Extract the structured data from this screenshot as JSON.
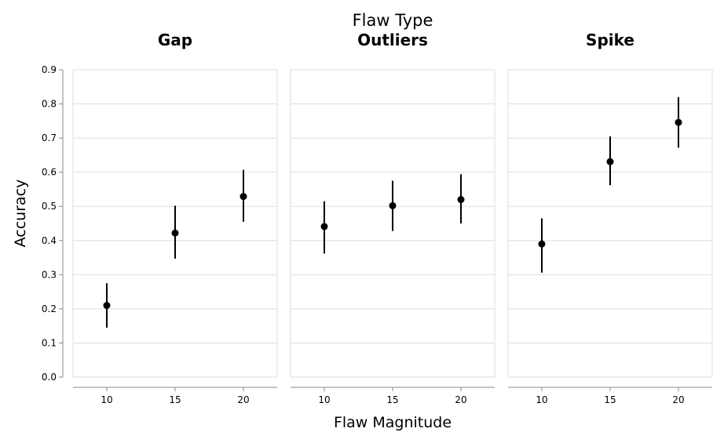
{
  "chart_data": {
    "type": "scatter",
    "super_title": "Flaw Type",
    "xlabel": "Flaw Magnitude",
    "ylabel": "Accuracy",
    "ylim": [
      0,
      0.9
    ],
    "yticks": [
      "0.0",
      "0.1",
      "0.2",
      "0.3",
      "0.4",
      "0.5",
      "0.6",
      "0.7",
      "0.8",
      "0.9"
    ],
    "categories": [
      "10",
      "15",
      "20"
    ],
    "grid": true,
    "error_bars": true,
    "facets": [
      {
        "title": "Gap",
        "points": [
          {
            "x": "10",
            "y": 0.21,
            "low": 0.145,
            "high": 0.275
          },
          {
            "x": "15",
            "y": 0.422,
            "low": 0.347,
            "high": 0.502
          },
          {
            "x": "20",
            "y": 0.529,
            "low": 0.455,
            "high": 0.607
          }
        ]
      },
      {
        "title": "Outliers",
        "points": [
          {
            "x": "10",
            "y": 0.441,
            "low": 0.362,
            "high": 0.515
          },
          {
            "x": "15",
            "y": 0.502,
            "low": 0.428,
            "high": 0.575
          },
          {
            "x": "20",
            "y": 0.52,
            "low": 0.45,
            "high": 0.594
          }
        ]
      },
      {
        "title": "Spike",
        "points": [
          {
            "x": "10",
            "y": 0.39,
            "low": 0.306,
            "high": 0.465
          },
          {
            "x": "15",
            "y": 0.631,
            "low": 0.562,
            "high": 0.705
          },
          {
            "x": "20",
            "y": 0.746,
            "low": 0.672,
            "high": 0.82
          }
        ]
      }
    ]
  }
}
